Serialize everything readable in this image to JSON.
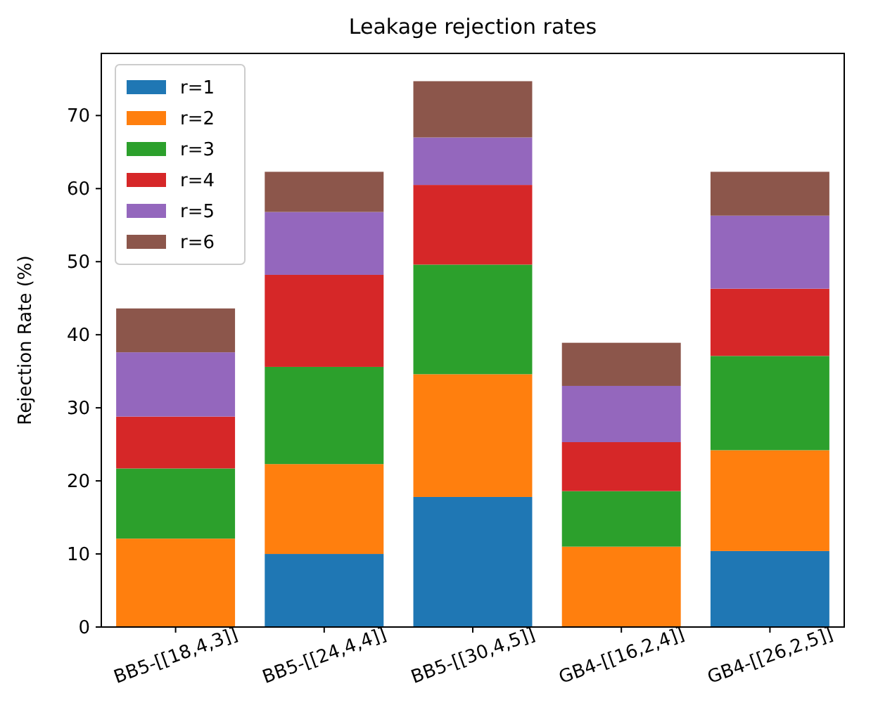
{
  "chart_data": {
    "type": "bar",
    "title": "Leakage rejection rates",
    "ylabel": "Rejection Rate (%)",
    "categories": [
      "BB5-[[18,4,3]]",
      "BB5-[[24,4,4]]",
      "BB5-[[30,4,5]]",
      "GB4-[[16,2,4]]",
      "GB4-[[26,2,5]]"
    ],
    "stacked": true,
    "legend": "top left",
    "ylim": [
      0,
      78.5
    ],
    "yticks": [
      0,
      10,
      20,
      30,
      40,
      50,
      60,
      70
    ],
    "series": [
      {
        "name": "r=1",
        "color": "#1f77b4",
        "values": [
          0,
          10.0,
          17.8,
          0,
          10.4
        ]
      },
      {
        "name": "r=2",
        "color": "#ff7f0e",
        "values": [
          12.1,
          12.3,
          16.8,
          11.0,
          13.8
        ]
      },
      {
        "name": "r=3",
        "color": "#2ca02c",
        "values": [
          9.6,
          13.3,
          15.0,
          7.6,
          12.9
        ]
      },
      {
        "name": "r=4",
        "color": "#d62728",
        "values": [
          7.1,
          12.6,
          10.9,
          6.7,
          9.2
        ]
      },
      {
        "name": "r=5",
        "color": "#9467bd",
        "values": [
          8.8,
          8.6,
          6.5,
          7.7,
          10.0
        ]
      },
      {
        "name": "r=6",
        "color": "#8c564b",
        "values": [
          6.0,
          5.5,
          7.7,
          5.9,
          6.0
        ]
      }
    ]
  }
}
